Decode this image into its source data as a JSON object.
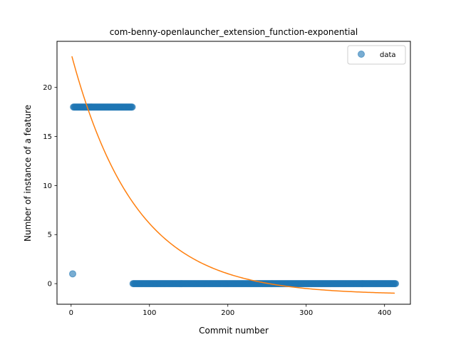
{
  "chart_data": {
    "type": "scatter",
    "title": "com-benny-openlauncher_extension_function-exponential",
    "xlabel": "Commit number",
    "ylabel": "Number of instance of a feature",
    "xlim": [
      -18,
      433
    ],
    "ylim": [
      -2.1,
      24.7
    ],
    "xticks": [
      0,
      100,
      200,
      300,
      400
    ],
    "yticks": [
      0,
      5,
      10,
      15,
      20
    ],
    "legend": {
      "position": "top-right",
      "entries": [
        "data"
      ]
    },
    "colors": {
      "data": "#1f77b4",
      "fit": "#ff7f0e"
    },
    "series": [
      {
        "name": "data",
        "kind": "points",
        "segments": [
          {
            "x_start": 2,
            "x_end": 2,
            "y": 1
          },
          {
            "x_start": 3,
            "x_end": 78,
            "y": 18
          },
          {
            "x_start": 79,
            "x_end": 414,
            "y": 0
          }
        ]
      },
      {
        "kind": "line",
        "function": "a*exp(-b*x)+c",
        "params": {
          "a": 24.6,
          "b": 0.0122,
          "c": -1.13
        },
        "x_range": [
          1,
          414
        ]
      }
    ]
  }
}
